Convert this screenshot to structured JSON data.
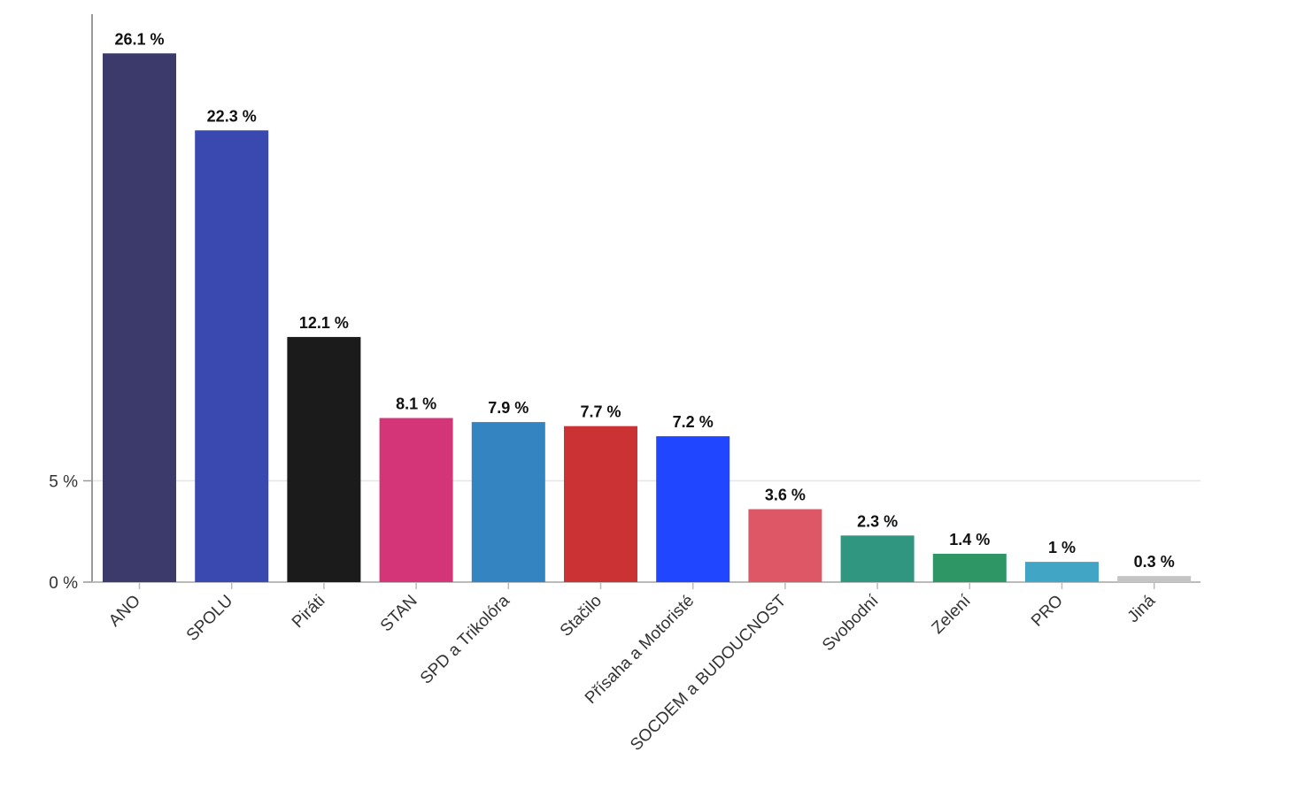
{
  "chart_data": {
    "type": "bar",
    "title": "",
    "xlabel": "",
    "ylabel": "",
    "ylim": [
      0,
      26.1
    ],
    "grid": "horizontal",
    "y_ticks": [
      {
        "value": 0,
        "label": "0 %"
      },
      {
        "value": 5,
        "label": "5 %"
      }
    ],
    "categories": [
      "ANO",
      "SPOLU",
      "Piráti",
      "STAN",
      "SPD a Trikolóra",
      "Stačilo",
      "Přísaha a Motoristé",
      "SOCDEM a BUDOUCNOST",
      "Svobodní",
      "Zelení",
      "PRO",
      "Jiná"
    ],
    "values": [
      26.1,
      22.3,
      12.1,
      8.1,
      7.9,
      7.7,
      7.2,
      3.6,
      2.3,
      1.4,
      1,
      0.3
    ],
    "value_labels": [
      "26.1 %",
      "22.3 %",
      "12.1 %",
      "8.1 %",
      "7.9 %",
      "7.7 %",
      "7.2 %",
      "3.6 %",
      "2.3 %",
      "1.4 %",
      "1 %",
      "0.3 %"
    ],
    "colors": [
      "#3b3a6a",
      "#3a49b0",
      "#1b1b1b",
      "#d33578",
      "#3384c0",
      "#cb3233",
      "#2146ff",
      "#dd5766",
      "#319680",
      "#2e9565",
      "#41a6c6",
      "#c4c4c4"
    ]
  }
}
